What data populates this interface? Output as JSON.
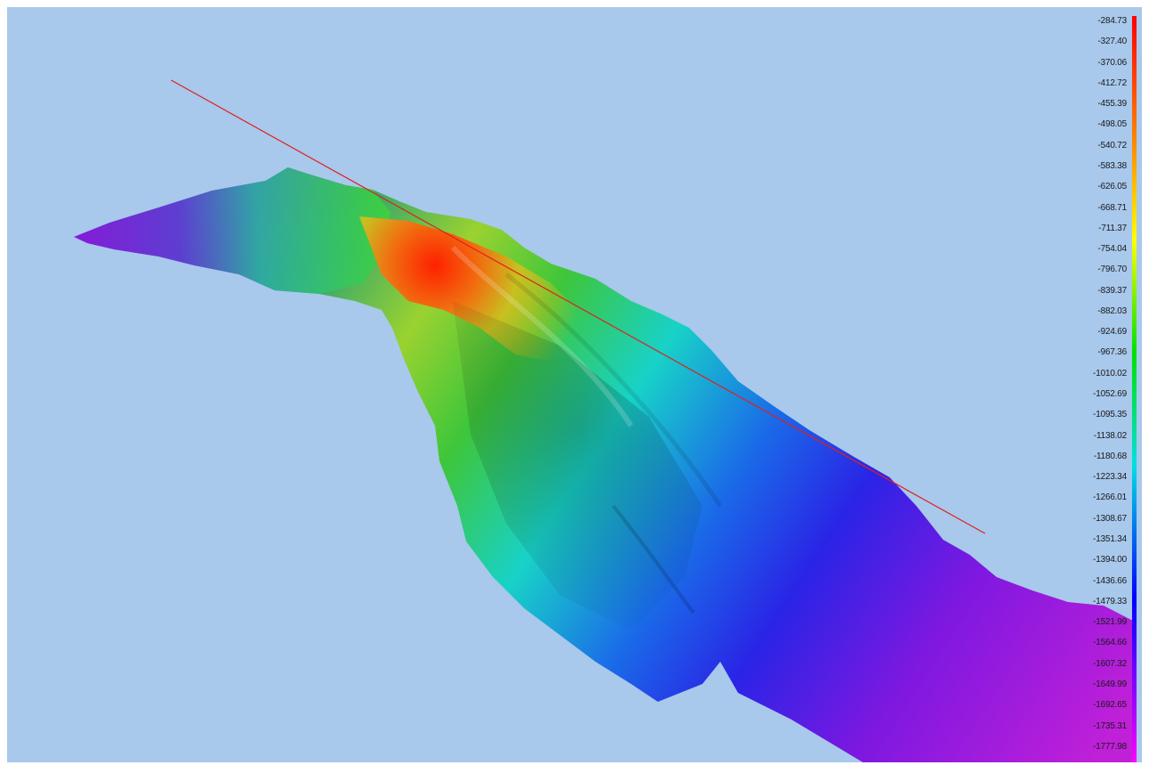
{
  "view": {
    "background_color": "#a8c8ec",
    "profile_line_color": "#e0201c"
  },
  "legend": {
    "ramp_colors": [
      "#ff0000",
      "#ff8000",
      "#ffff00",
      "#00e000",
      "#00e0e0",
      "#0000ff",
      "#ff00ff"
    ],
    "labels": [
      "-284.73",
      "-327.40",
      "-370.06",
      "-412.72",
      "-455.39",
      "-498.05",
      "-540.72",
      "-583.38",
      "-626.05",
      "-668.71",
      "-711.37",
      "-754.04",
      "-796.70",
      "-839.37",
      "-882.03",
      "-924.69",
      "-967.36",
      "-1010.02",
      "-1052.69",
      "-1095.35",
      "-1138.02",
      "-1180.68",
      "-1223.34",
      "-1266.01",
      "-1308.67",
      "-1351.34",
      "-1394.00",
      "-1436.66",
      "-1479.33",
      "-1521.99",
      "-1564.66",
      "-1607.32",
      "-1649.99",
      "-1692.65",
      "-1735.31",
      "-1777.98"
    ]
  }
}
